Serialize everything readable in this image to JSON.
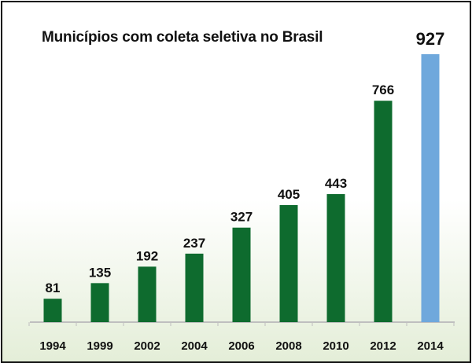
{
  "chart_data": {
    "type": "bar",
    "title": "Municípios com coleta seletiva no Brasil",
    "xlabel": "",
    "ylabel": "",
    "categories": [
      "1994",
      "1999",
      "2002",
      "2004",
      "2006",
      "2008",
      "2010",
      "2012",
      "2014"
    ],
    "values": [
      81,
      135,
      192,
      237,
      327,
      405,
      443,
      766,
      927
    ],
    "ylim": [
      0,
      927
    ],
    "grid": false,
    "legend": "none",
    "colors": {
      "bar": "#0e6b2e",
      "highlight_bar": "#6fa8dc",
      "axis": "#bfbfbf",
      "background_bottom": "#e4eed8"
    },
    "highlight_category": "2014"
  }
}
